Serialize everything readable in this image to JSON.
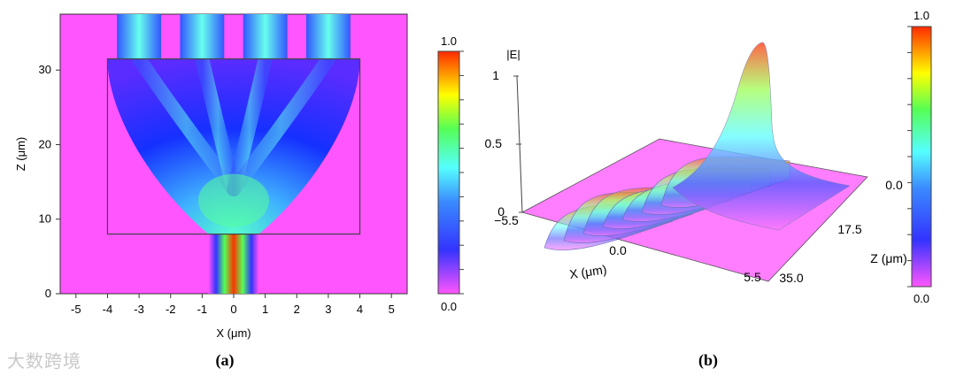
{
  "watermark": "大数跨境",
  "chart_data": [
    {
      "type": "heatmap",
      "caption": "(a)",
      "xlabel": "X (μm)",
      "ylabel": "Z (μm)",
      "xlim": [
        -5.5,
        5.5
      ],
      "ylim": [
        0,
        37.5
      ],
      "x_ticks": [
        -5,
        -4,
        -3,
        -2,
        -1,
        0,
        1,
        2,
        3,
        4,
        5
      ],
      "y_ticks": [
        0,
        10,
        20,
        30
      ],
      "colorbar": {
        "min": 0.0,
        "max": 1.0,
        "min_label": "0.0",
        "max_label": "1.0",
        "colors": [
          "#ff55ff",
          "#0000ff",
          "#55ffff",
          "#55ff55",
          "#ffff00",
          "#ff3300"
        ]
      },
      "input_waveguide": {
        "x_range": [
          -0.8,
          0.8
        ],
        "z_range": [
          0,
          8
        ]
      },
      "taper_region": {
        "x_range": [
          -4,
          4
        ],
        "z_range": [
          8,
          31.5
        ]
      },
      "output_waveguides": {
        "x_centers": [
          -3,
          -1,
          1,
          3
        ],
        "z_range": [
          31.5,
          37.5
        ]
      }
    },
    {
      "type": "surface3d",
      "caption": "(b)",
      "zlabel": "|E|",
      "z_ticks": [
        "0",
        "0.5",
        "1"
      ],
      "x_axis_label": "X (μm)",
      "x_ticks": [
        "−5.5",
        "0.0",
        "5.5"
      ],
      "depth_label": "Z (μm)",
      "depth_ticks": [
        "0.0",
        "17.5",
        "35.0"
      ],
      "colorbar": {
        "min_label": "0.0",
        "max_label": "1.0"
      }
    }
  ]
}
